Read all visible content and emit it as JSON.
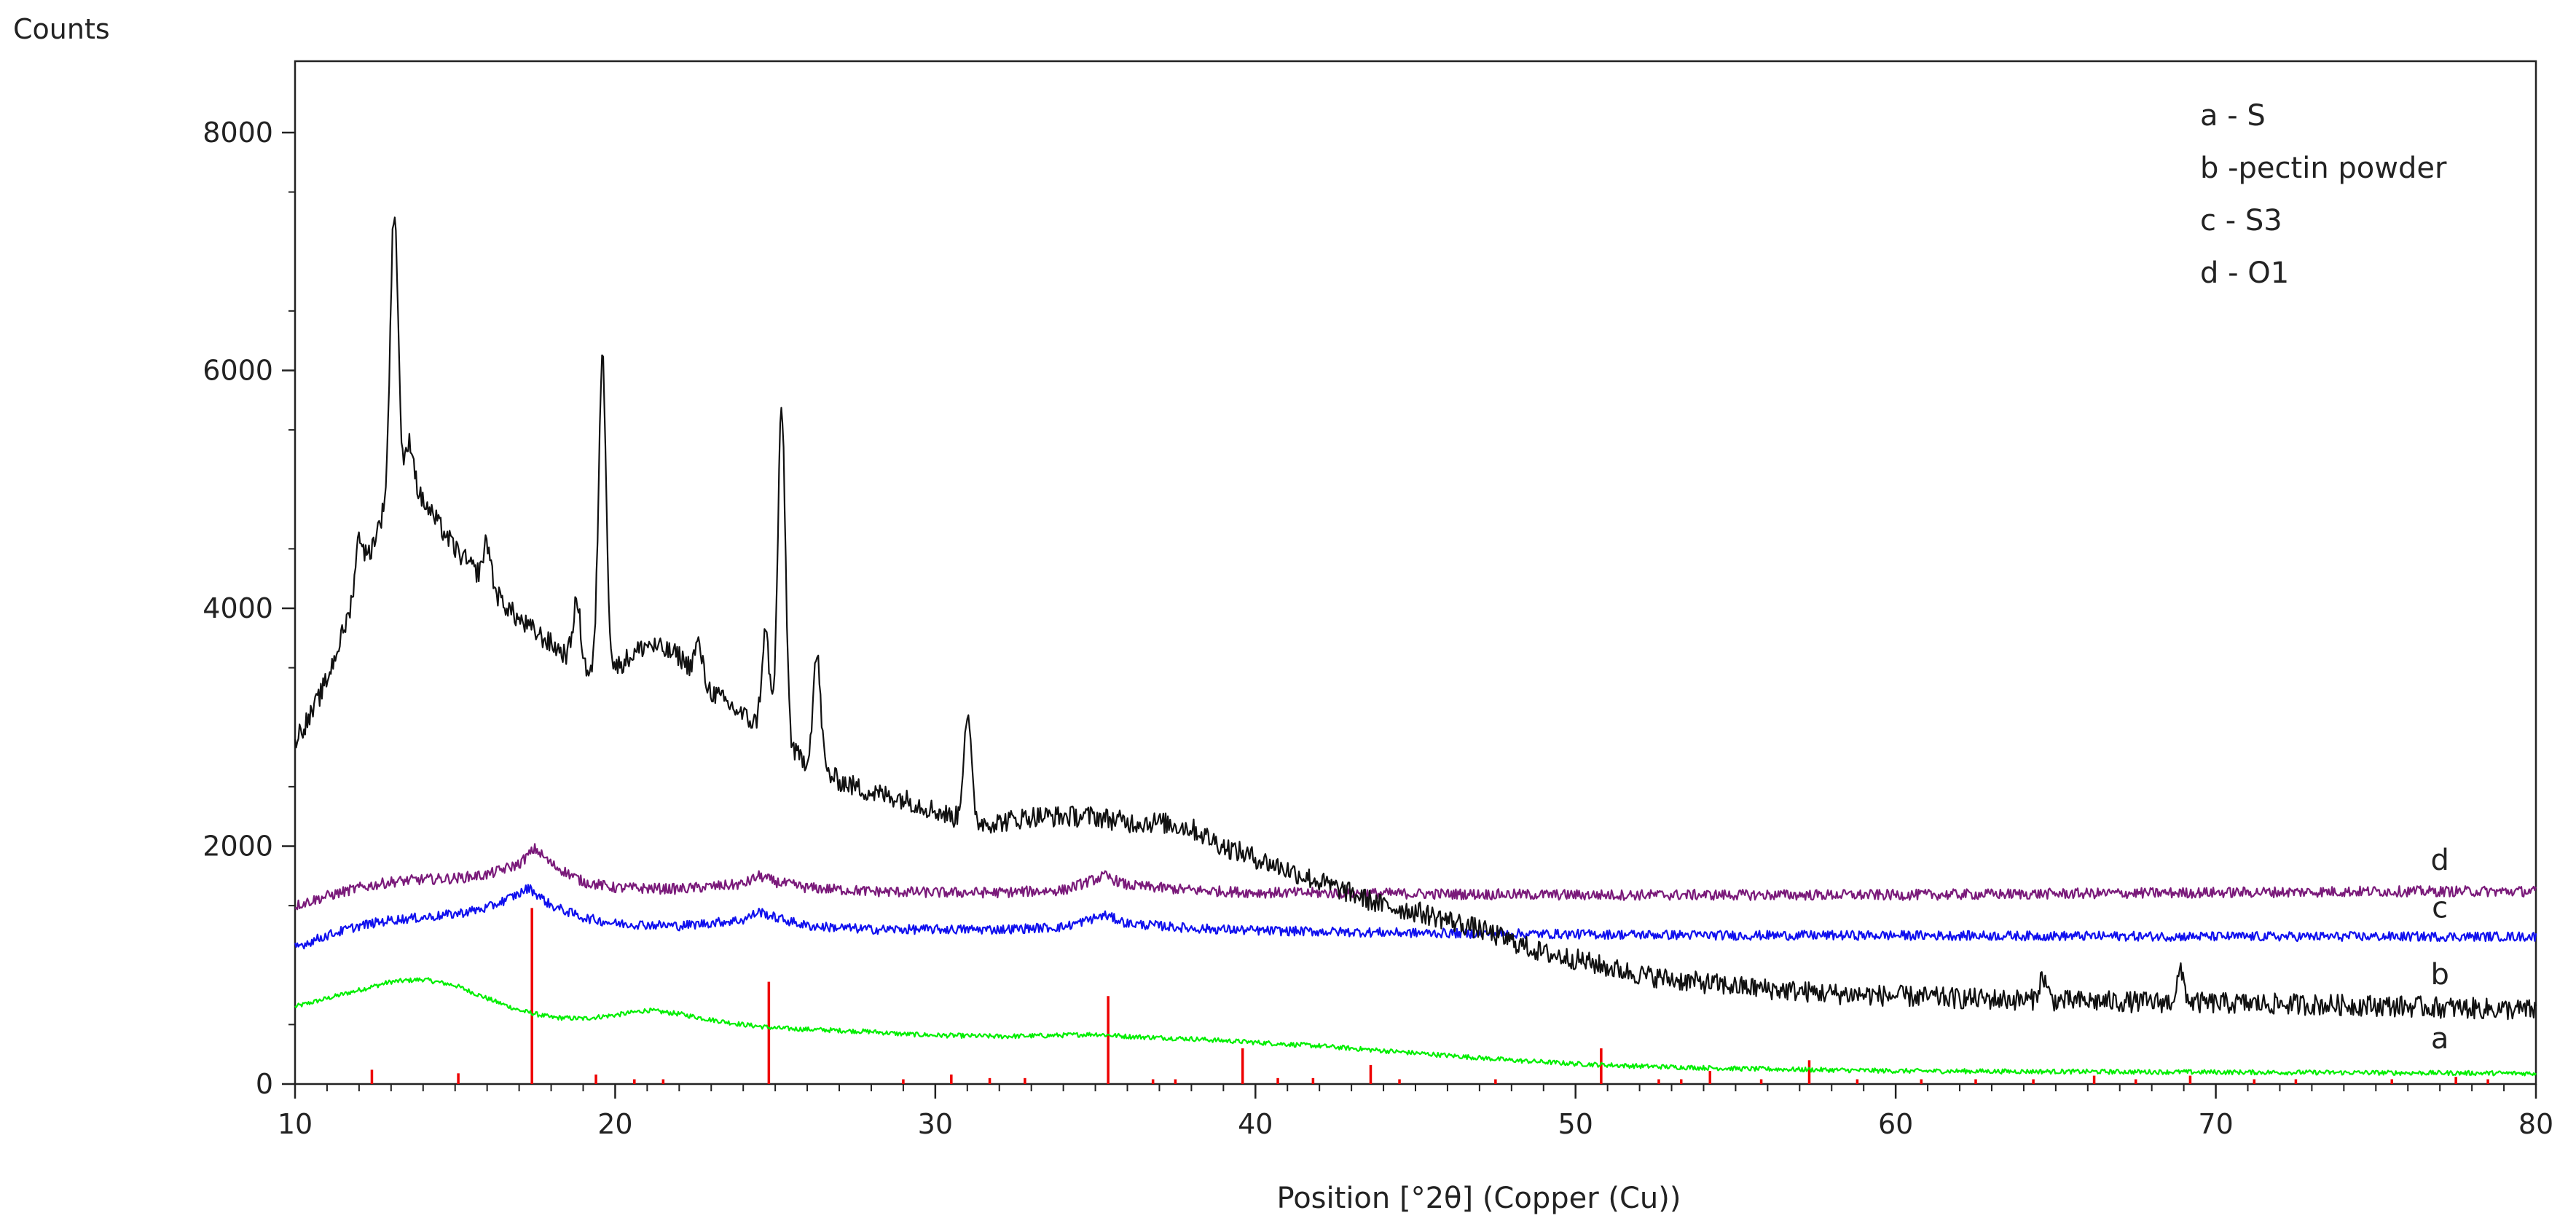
{
  "chart_data": {
    "type": "line",
    "title": "",
    "ylabel": "Counts",
    "xlabel": "Position [°2θ] (Copper (Cu))",
    "xlim": [
      10,
      80
    ],
    "ylim": [
      0,
      8600
    ],
    "x_ticks": [
      10,
      20,
      30,
      40,
      50,
      60,
      70,
      80
    ],
    "y_ticks": [
      0,
      2000,
      4000,
      6000,
      8000
    ],
    "legend": {
      "placement": "top-right",
      "entries": [
        "a - S",
        "b -pectin powder",
        "c - S3",
        "d - O1"
      ]
    },
    "series_labels": [
      "a",
      "b",
      "c",
      "d"
    ],
    "series": [
      {
        "name": "a",
        "color": "#00ee00",
        "noise": 20,
        "points": [
          [
            10,
            650
          ],
          [
            11,
            720
          ],
          [
            12,
            790
          ],
          [
            13,
            860
          ],
          [
            14,
            880
          ],
          [
            15,
            830
          ],
          [
            16,
            720
          ],
          [
            17,
            620
          ],
          [
            18,
            560
          ],
          [
            19,
            550
          ],
          [
            20,
            580
          ],
          [
            21,
            620
          ],
          [
            22,
            590
          ],
          [
            23,
            540
          ],
          [
            24,
            500
          ],
          [
            25,
            470
          ],
          [
            26,
            460
          ],
          [
            27,
            450
          ],
          [
            28,
            440
          ],
          [
            29,
            420
          ],
          [
            30,
            410
          ],
          [
            32,
            400
          ],
          [
            34,
            410
          ],
          [
            35,
            420
          ],
          [
            36,
            400
          ],
          [
            38,
            380
          ],
          [
            40,
            350
          ],
          [
            42,
            320
          ],
          [
            44,
            280
          ],
          [
            46,
            240
          ],
          [
            48,
            200
          ],
          [
            50,
            170
          ],
          [
            52,
            150
          ],
          [
            55,
            130
          ],
          [
            60,
            110
          ],
          [
            65,
            105
          ],
          [
            70,
            100
          ],
          [
            75,
            95
          ],
          [
            80,
            90
          ]
        ]
      },
      {
        "name": "b",
        "color": "#111111",
        "noise": 90,
        "points": [
          [
            10,
            2900
          ],
          [
            10.5,
            3100
          ],
          [
            11,
            3400
          ],
          [
            11.5,
            3800
          ],
          [
            12,
            4200
          ],
          [
            12.5,
            4600
          ],
          [
            13,
            5000
          ],
          [
            13.5,
            5050
          ],
          [
            14,
            4900
          ],
          [
            15,
            4500
          ],
          [
            16,
            4200
          ],
          [
            17,
            3900
          ],
          [
            18,
            3700
          ],
          [
            19,
            3500
          ],
          [
            19.4,
            3400
          ],
          [
            20,
            3500
          ],
          [
            21,
            3700
          ],
          [
            22,
            3600
          ],
          [
            23,
            3300
          ],
          [
            24,
            3100
          ],
          [
            25,
            2900
          ],
          [
            26,
            2700
          ],
          [
            27,
            2550
          ],
          [
            28,
            2450
          ],
          [
            29,
            2400
          ],
          [
            30,
            2300
          ],
          [
            31,
            2200
          ],
          [
            32,
            2200
          ],
          [
            33,
            2250
          ],
          [
            34,
            2250
          ],
          [
            35,
            2250
          ],
          [
            36,
            2200
          ],
          [
            37,
            2200
          ],
          [
            38,
            2150
          ],
          [
            39,
            2000
          ],
          [
            40,
            1900
          ],
          [
            41,
            1800
          ],
          [
            42,
            1700
          ],
          [
            43,
            1600
          ],
          [
            44,
            1500
          ],
          [
            45,
            1450
          ],
          [
            46,
            1380
          ],
          [
            47,
            1300
          ],
          [
            48,
            1200
          ],
          [
            49,
            1100
          ],
          [
            50,
            1050
          ],
          [
            51,
            980
          ],
          [
            52,
            920
          ],
          [
            53,
            880
          ],
          [
            54,
            850
          ],
          [
            55,
            820
          ],
          [
            56,
            800
          ],
          [
            57,
            780
          ],
          [
            58,
            760
          ],
          [
            60,
            740
          ],
          [
            62,
            720
          ],
          [
            65,
            700
          ],
          [
            70,
            680
          ],
          [
            75,
            660
          ],
          [
            80,
            620
          ]
        ],
        "peaks": [
          [
            12,
            4600
          ],
          [
            13.1,
            7350
          ],
          [
            13.6,
            5400
          ],
          [
            16,
            4550
          ],
          [
            18.8,
            4050
          ],
          [
            19.6,
            6100
          ],
          [
            22.6,
            3700
          ],
          [
            24.7,
            3800
          ],
          [
            25.2,
            5650
          ],
          [
            26.3,
            3600
          ],
          [
            31,
            3100
          ],
          [
            64.6,
            900
          ],
          [
            68.9,
            930
          ]
        ]
      },
      {
        "name": "c",
        "color": "#1010ee",
        "noise": 40,
        "points": [
          [
            10,
            1150
          ],
          [
            11,
            1250
          ],
          [
            12,
            1330
          ],
          [
            13,
            1380
          ],
          [
            14,
            1400
          ],
          [
            15,
            1430
          ],
          [
            16,
            1480
          ],
          [
            17,
            1600
          ],
          [
            17.3,
            1650
          ],
          [
            18,
            1500
          ],
          [
            19,
            1400
          ],
          [
            20,
            1350
          ],
          [
            22,
            1330
          ],
          [
            24,
            1380
          ],
          [
            24.5,
            1450
          ],
          [
            25,
            1400
          ],
          [
            26,
            1330
          ],
          [
            28,
            1300
          ],
          [
            30,
            1300
          ],
          [
            32,
            1300
          ],
          [
            34,
            1320
          ],
          [
            35.3,
            1420
          ],
          [
            36,
            1350
          ],
          [
            38,
            1310
          ],
          [
            40,
            1290
          ],
          [
            45,
            1270
          ],
          [
            50,
            1260
          ],
          [
            55,
            1250
          ],
          [
            60,
            1250
          ],
          [
            65,
            1245
          ],
          [
            70,
            1240
          ],
          [
            75,
            1240
          ],
          [
            80,
            1240
          ]
        ]
      },
      {
        "name": "d",
        "color": "#7a1a7a",
        "noise": 45,
        "points": [
          [
            10,
            1500
          ],
          [
            11,
            1580
          ],
          [
            12,
            1650
          ],
          [
            13,
            1700
          ],
          [
            14,
            1720
          ],
          [
            15,
            1730
          ],
          [
            16,
            1760
          ],
          [
            17,
            1850
          ],
          [
            17.5,
            1980
          ],
          [
            18,
            1850
          ],
          [
            19,
            1700
          ],
          [
            20,
            1650
          ],
          [
            22,
            1640
          ],
          [
            24,
            1680
          ],
          [
            24.5,
            1750
          ],
          [
            25,
            1700
          ],
          [
            26,
            1650
          ],
          [
            28,
            1620
          ],
          [
            30,
            1610
          ],
          [
            32,
            1610
          ],
          [
            34,
            1630
          ],
          [
            35.3,
            1750
          ],
          [
            36,
            1670
          ],
          [
            38,
            1630
          ],
          [
            40,
            1610
          ],
          [
            45,
            1600
          ],
          [
            50,
            1590
          ],
          [
            55,
            1590
          ],
          [
            60,
            1590
          ],
          [
            65,
            1600
          ],
          [
            70,
            1610
          ],
          [
            75,
            1620
          ],
          [
            80,
            1620
          ]
        ]
      }
    ],
    "reference_lines": {
      "color": "#ee0000",
      "lines": [
        [
          12.4,
          120
        ],
        [
          15.1,
          90
        ],
        [
          17.4,
          1480
        ],
        [
          19.4,
          80
        ],
        [
          20.6,
          40
        ],
        [
          21.5,
          40
        ],
        [
          24.8,
          860
        ],
        [
          29,
          40
        ],
        [
          30.5,
          80
        ],
        [
          31.7,
          50
        ],
        [
          32.8,
          50
        ],
        [
          35.4,
          740
        ],
        [
          36.8,
          40
        ],
        [
          37.5,
          40
        ],
        [
          39.6,
          300
        ],
        [
          40.7,
          50
        ],
        [
          41.8,
          50
        ],
        [
          43.6,
          160
        ],
        [
          44.5,
          40
        ],
        [
          47.5,
          40
        ],
        [
          50.8,
          300
        ],
        [
          52.6,
          40
        ],
        [
          53.3,
          40
        ],
        [
          54.2,
          110
        ],
        [
          55.8,
          40
        ],
        [
          57.3,
          200
        ],
        [
          58.8,
          40
        ],
        [
          60.8,
          40
        ],
        [
          62.5,
          40
        ],
        [
          64.3,
          40
        ],
        [
          66.2,
          70
        ],
        [
          67.5,
          40
        ],
        [
          69.2,
          70
        ],
        [
          71.2,
          40
        ],
        [
          72.5,
          40
        ],
        [
          75.5,
          40
        ],
        [
          77.5,
          60
        ],
        [
          78.5,
          40
        ]
      ]
    }
  }
}
